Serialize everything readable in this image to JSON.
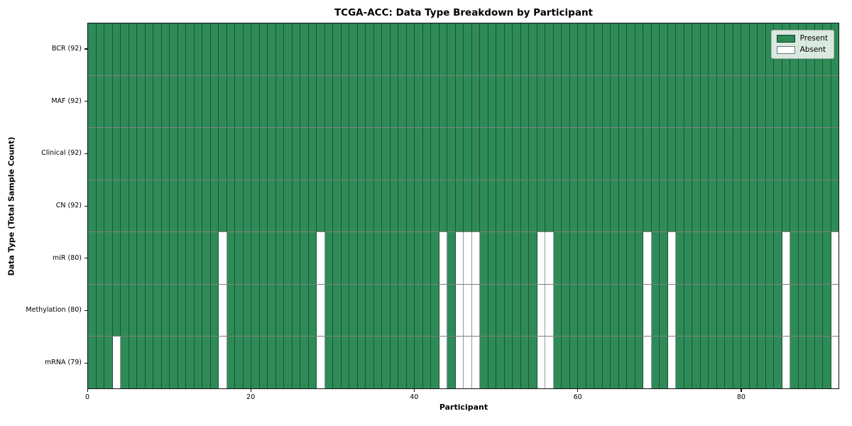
{
  "title": "TCGA-ACC: Data Type Breakdown by Participant",
  "axes": {
    "xlabel": "Participant",
    "ylabel": "Data Type (Total Sample Count)"
  },
  "legend": {
    "items": [
      {
        "label": "Present",
        "color": "#2e8b57"
      },
      {
        "label": "Absent",
        "color": "#ffffff"
      }
    ]
  },
  "colors": {
    "present": "#2e8b57",
    "absent": "#ffffff",
    "grid_line": "rgba(0,0,0,0.40)",
    "spine": "#111111"
  },
  "chart_data": {
    "type": "heatmap",
    "title": "TCGA-ACC: Data Type Breakdown by Participant",
    "xlabel": "Participant",
    "ylabel": "Data Type (Total Sample Count)",
    "n_participants": 92,
    "x_range": [
      0,
      92
    ],
    "x_ticks": [
      0,
      20,
      40,
      60,
      80
    ],
    "x_tick_labels": [
      "0",
      "20",
      "40",
      "60",
      "80"
    ],
    "legend_position": "upper right",
    "grid": true,
    "cell_values": "1 = Present (green), 0 = Absent (white)",
    "rows": [
      {
        "label": "BCR (92)",
        "data_type": "BCR",
        "total_sample_count": 92,
        "absent_participants": []
      },
      {
        "label": "MAF (92)",
        "data_type": "MAF",
        "total_sample_count": 92,
        "absent_participants": []
      },
      {
        "label": "Clinical (92)",
        "data_type": "Clinical",
        "total_sample_count": 92,
        "absent_participants": []
      },
      {
        "label": "CN (92)",
        "data_type": "CN",
        "total_sample_count": 92,
        "absent_participants": []
      },
      {
        "label": "miR (80)",
        "data_type": "miR",
        "total_sample_count": 80,
        "absent_participants": [
          16,
          28,
          43,
          45,
          46,
          47,
          55,
          56,
          68,
          71,
          85,
          91
        ]
      },
      {
        "label": "Methylation (80)",
        "data_type": "Methylation",
        "total_sample_count": 80,
        "absent_participants": [
          16,
          28,
          43,
          45,
          46,
          47,
          55,
          56,
          68,
          71,
          85,
          91
        ]
      },
      {
        "label": "mRNA (79)",
        "data_type": "mRNA",
        "total_sample_count": 79,
        "absent_participants": [
          3,
          16,
          28,
          43,
          45,
          46,
          47,
          55,
          56,
          68,
          71,
          85,
          91
        ]
      }
    ]
  }
}
